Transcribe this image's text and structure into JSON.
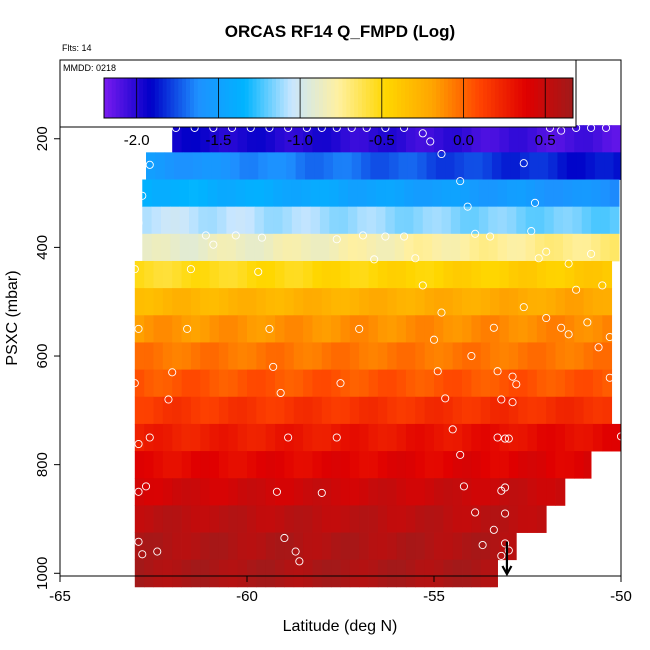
{
  "chart_data": {
    "type": "heatmap",
    "title": "ORCAS RF14 Q_FMPD (Log)",
    "flights_label": "Flts: 14",
    "date_label": "MMDD: 0218",
    "xlabel": "Latitude (deg N)",
    "ylabel": "PSXC (mbar)",
    "xlim": [
      -65,
      -50
    ],
    "ylim": [
      1005,
      55
    ],
    "x_ticks": [
      -65,
      -60,
      -55,
      -50
    ],
    "y_ticks": [
      200,
      400,
      600,
      800,
      1000
    ],
    "colorbar": {
      "range": [
        -2.2,
        0.67
      ],
      "ticks": [
        -2.0,
        -1.5,
        -1.0,
        -0.5,
        0.0,
        0.5
      ],
      "tick_labels": [
        "-2.0",
        "-1.5",
        "-1.0",
        "-0.5",
        "0.0",
        "0.5"
      ],
      "colors": [
        "#7a1bf0",
        "#0000c8",
        "#1e90ff",
        "#00b4ff",
        "#c8e6ff",
        "#fff0a0",
        "#ffd700",
        "#ffa500",
        "#ff4500",
        "#e00000",
        "#a01a1a"
      ]
    },
    "cell_width_deg": 0.25,
    "layer_height_mbar": 50,
    "layers": [
      {
        "p": 200,
        "lat_min": -62.0,
        "lat_max": -50.0,
        "left": -1.95,
        "right": -2.1
      },
      {
        "p": 250,
        "lat_min": -62.7,
        "lat_max": -50.0,
        "left": -1.55,
        "right": -1.9
      },
      {
        "p": 300,
        "lat_min": -62.8,
        "lat_max": -50.0,
        "left": -1.35,
        "right": -1.6
      },
      {
        "p": 350,
        "lat_min": -62.8,
        "lat_max": -50.0,
        "left": -1.05,
        "right": -1.2
      },
      {
        "p": 400,
        "lat_min": -62.8,
        "lat_max": -50.0,
        "left": -0.9,
        "right": -0.7
      },
      {
        "p": 450,
        "lat_min": -63.0,
        "lat_max": -50.2,
        "left": -0.55,
        "right": -0.4
      },
      {
        "p": 500,
        "lat_min": -63.0,
        "lat_max": -50.2,
        "left": -0.3,
        "right": -0.2
      },
      {
        "p": 550,
        "lat_min": -63.0,
        "lat_max": -50.2,
        "left": -0.15,
        "right": -0.1
      },
      {
        "p": 600,
        "lat_min": -63.0,
        "lat_max": -50.2,
        "left": -0.05,
        "right": -0.05
      },
      {
        "p": 650,
        "lat_min": -63.0,
        "lat_max": -50.2,
        "left": 0.05,
        "right": 0.05
      },
      {
        "p": 700,
        "lat_min": -63.0,
        "lat_max": -50.2,
        "left": 0.15,
        "right": 0.2
      },
      {
        "p": 750,
        "lat_min": -63.0,
        "lat_max": -50.0,
        "left": 0.25,
        "right": 0.35
      },
      {
        "p": 800,
        "lat_min": -63.0,
        "lat_max": -50.8,
        "left": 0.35,
        "right": 0.4
      },
      {
        "p": 850,
        "lat_min": -63.0,
        "lat_max": -51.5,
        "left": 0.45,
        "right": 0.5
      },
      {
        "p": 900,
        "lat_min": -63.0,
        "lat_max": -52.0,
        "left": 0.55,
        "right": 0.55
      },
      {
        "p": 950,
        "lat_min": -63.0,
        "lat_max": -52.8,
        "left": 0.6,
        "right": 0.6
      },
      {
        "p": 1000,
        "lat_min": -63.0,
        "lat_max": -53.3,
        "left": 0.62,
        "right": 0.62
      }
    ],
    "observations": [
      {
        "lat": -61.9,
        "p": 180
      },
      {
        "lat": -61.4,
        "p": 180
      },
      {
        "lat": -60.9,
        "p": 180
      },
      {
        "lat": -60.4,
        "p": 180
      },
      {
        "lat": -59.9,
        "p": 180
      },
      {
        "lat": -59.4,
        "p": 180
      },
      {
        "lat": -58.9,
        "p": 180
      },
      {
        "lat": -58.4,
        "p": 180
      },
      {
        "lat": -58.0,
        "p": 180
      },
      {
        "lat": -57.6,
        "p": 180
      },
      {
        "lat": -57.2,
        "p": 180
      },
      {
        "lat": -56.8,
        "p": 180
      },
      {
        "lat": -56.3,
        "p": 180
      },
      {
        "lat": -55.8,
        "p": 180
      },
      {
        "lat": -55.3,
        "p": 190
      },
      {
        "lat": -55.1,
        "p": 205
      },
      {
        "lat": -54.8,
        "p": 228
      },
      {
        "lat": -54.3,
        "p": 278
      },
      {
        "lat": -54.1,
        "p": 325
      },
      {
        "lat": -53.9,
        "p": 375
      },
      {
        "lat": -53.5,
        "p": 380
      },
      {
        "lat": -52.6,
        "p": 245
      },
      {
        "lat": -52.3,
        "p": 318
      },
      {
        "lat": -52.4,
        "p": 370
      },
      {
        "lat": -52.2,
        "p": 420
      },
      {
        "lat": -51.9,
        "p": 180
      },
      {
        "lat": -51.6,
        "p": 185
      },
      {
        "lat": -51.2,
        "p": 180
      },
      {
        "lat": -50.8,
        "p": 180
      },
      {
        "lat": -50.4,
        "p": 180
      },
      {
        "lat": -62.6,
        "p": 248
      },
      {
        "lat": -62.8,
        "p": 305
      },
      {
        "lat": -62.9,
        "p": 355
      },
      {
        "lat": -61.1,
        "p": 378
      },
      {
        "lat": -60.9,
        "p": 395
      },
      {
        "lat": -60.3,
        "p": 378
      },
      {
        "lat": -59.6,
        "p": 382
      },
      {
        "lat": -59.7,
        "p": 445
      },
      {
        "lat": -61.5,
        "p": 440
      },
      {
        "lat": -57.6,
        "p": 385
      },
      {
        "lat": -56.9,
        "p": 378
      },
      {
        "lat": -56.3,
        "p": 380
      },
      {
        "lat": -55.8,
        "p": 380
      },
      {
        "lat": -55.5,
        "p": 420
      },
      {
        "lat": -55.3,
        "p": 470
      },
      {
        "lat": -56.6,
        "p": 422
      },
      {
        "lat": -52.0,
        "p": 408
      },
      {
        "lat": -51.4,
        "p": 430
      },
      {
        "lat": -51.2,
        "p": 478
      },
      {
        "lat": -50.8,
        "p": 412
      },
      {
        "lat": -50.5,
        "p": 470
      },
      {
        "lat": -63.0,
        "p": 440
      },
      {
        "lat": -62.9,
        "p": 550
      },
      {
        "lat": -61.6,
        "p": 550
      },
      {
        "lat": -59.4,
        "p": 550
      },
      {
        "lat": -57.0,
        "p": 550
      },
      {
        "lat": -55.0,
        "p": 570
      },
      {
        "lat": -54.8,
        "p": 520
      },
      {
        "lat": -53.4,
        "p": 548
      },
      {
        "lat": -52.6,
        "p": 510
      },
      {
        "lat": -52.0,
        "p": 530
      },
      {
        "lat": -51.6,
        "p": 548
      },
      {
        "lat": -51.4,
        "p": 560
      },
      {
        "lat": -50.9,
        "p": 538
      },
      {
        "lat": -50.6,
        "p": 584
      },
      {
        "lat": -50.3,
        "p": 565
      },
      {
        "lat": -63.0,
        "p": 650
      },
      {
        "lat": -62.0,
        "p": 630
      },
      {
        "lat": -62.1,
        "p": 680
      },
      {
        "lat": -59.3,
        "p": 620
      },
      {
        "lat": -59.1,
        "p": 668
      },
      {
        "lat": -58.9,
        "p": 750
      },
      {
        "lat": -57.5,
        "p": 650
      },
      {
        "lat": -54.9,
        "p": 628
      },
      {
        "lat": -54.7,
        "p": 678
      },
      {
        "lat": -54.0,
        "p": 600
      },
      {
        "lat": -53.3,
        "p": 628
      },
      {
        "lat": -53.2,
        "p": 680
      },
      {
        "lat": -52.9,
        "p": 638
      },
      {
        "lat": -52.8,
        "p": 652
      },
      {
        "lat": -52.9,
        "p": 685
      },
      {
        "lat": -50.3,
        "p": 640
      },
      {
        "lat": -50.1,
        "p": 690
      },
      {
        "lat": -62.6,
        "p": 750
      },
      {
        "lat": -62.9,
        "p": 762
      },
      {
        "lat": -57.6,
        "p": 750
      },
      {
        "lat": -54.5,
        "p": 735
      },
      {
        "lat": -54.3,
        "p": 782
      },
      {
        "lat": -53.3,
        "p": 750
      },
      {
        "lat": -53.1,
        "p": 752
      },
      {
        "lat": -53.0,
        "p": 752
      },
      {
        "lat": -50.0,
        "p": 748
      },
      {
        "lat": -62.9,
        "p": 850
      },
      {
        "lat": -62.7,
        "p": 840
      },
      {
        "lat": -59.2,
        "p": 850
      },
      {
        "lat": -58.0,
        "p": 852
      },
      {
        "lat": -54.2,
        "p": 840
      },
      {
        "lat": -53.9,
        "p": 888
      },
      {
        "lat": -53.2,
        "p": 848
      },
      {
        "lat": -53.1,
        "p": 842
      },
      {
        "lat": -53.1,
        "p": 890
      },
      {
        "lat": -53.4,
        "p": 920
      },
      {
        "lat": -62.9,
        "p": 942
      },
      {
        "lat": -62.8,
        "p": 965
      },
      {
        "lat": -62.4,
        "p": 960
      },
      {
        "lat": -59.0,
        "p": 935
      },
      {
        "lat": -58.7,
        "p": 960
      },
      {
        "lat": -58.6,
        "p": 978
      },
      {
        "lat": -53.7,
        "p": 948
      },
      {
        "lat": -53.2,
        "p": 968
      },
      {
        "lat": -53.1,
        "p": 945
      },
      {
        "lat": -53.0,
        "p": 958
      }
    ],
    "marker": {
      "lat": -53.05,
      "p_from": 975,
      "p_to": 1005,
      "label": "arrow"
    }
  }
}
